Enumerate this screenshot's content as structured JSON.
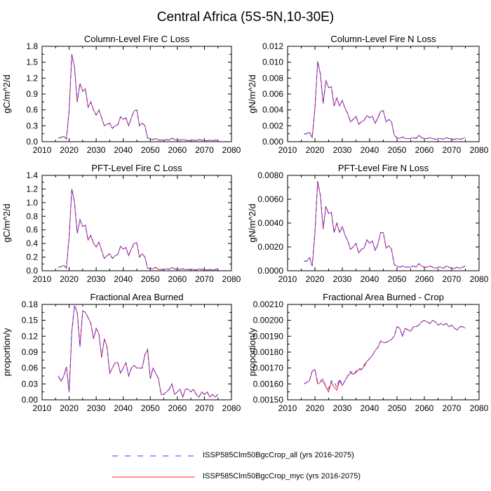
{
  "page_title": "Central Africa (5S-5N,10-30E)",
  "colors": {
    "series_all": "#3a3aff",
    "series_myc": "#ff2020"
  },
  "legend": [
    {
      "label": "ISSP585Clm50BgcCrop_all (yrs 2016-2075)",
      "style": "dashed",
      "color": "#3a3aff"
    },
    {
      "label": "ISSP585Clm50BgcCrop_myc (yrs 2016-2075)",
      "style": "solid",
      "color": "#ff2020"
    }
  ],
  "chart_data": [
    {
      "type": "line",
      "title": "Column-Level Fire C Loss",
      "ylabel": "gC/m^2/d",
      "xlim": [
        2010,
        2080
      ],
      "ylim": [
        0,
        1.8
      ],
      "x_ticks": [
        "2010",
        "2020",
        "2030",
        "2040",
        "2050",
        "2060",
        "2070",
        "2080"
      ],
      "y_ticks": [
        "0.0",
        "0.3",
        "0.6",
        "0.9",
        "1.2",
        "1.5",
        "1.8"
      ],
      "x_start": 2016,
      "series": [
        {
          "name": "ISSP585Clm50BgcCrop_all (yrs 2016-2075)",
          "values": [
            0.07,
            0.08,
            0.1,
            0.05,
            0.6,
            1.65,
            1.4,
            0.75,
            1.1,
            0.95,
            1.0,
            0.65,
            0.75,
            0.6,
            0.5,
            0.6,
            0.45,
            0.3,
            0.33,
            0.35,
            0.25,
            0.3,
            0.32,
            0.47,
            0.42,
            0.45,
            0.3,
            0.45,
            0.58,
            0.6,
            0.3,
            0.35,
            0.3,
            0.07,
            0.05,
            0.04,
            0.06,
            0.03,
            0.03,
            0.03,
            0.04,
            0.03,
            0.07,
            0.04,
            0.03,
            0.03,
            0.04,
            0.03,
            0.02,
            0.03,
            0.03,
            0.02,
            0.04,
            0.03,
            0.02,
            0.02,
            0.03,
            0.02,
            0.03,
            0.03
          ]
        },
        {
          "name": "ISSP585Clm50BgcCrop_myc (yrs 2016-2075)",
          "values": [
            0.07,
            0.08,
            0.1,
            0.05,
            0.6,
            1.65,
            1.4,
            0.75,
            1.1,
            0.95,
            1.0,
            0.65,
            0.75,
            0.6,
            0.5,
            0.6,
            0.45,
            0.3,
            0.33,
            0.35,
            0.25,
            0.3,
            0.32,
            0.47,
            0.42,
            0.45,
            0.3,
            0.45,
            0.58,
            0.6,
            0.3,
            0.35,
            0.3,
            0.07,
            0.05,
            0.04,
            0.06,
            0.03,
            0.03,
            0.03,
            0.04,
            0.03,
            0.07,
            0.04,
            0.03,
            0.03,
            0.04,
            0.03,
            0.02,
            0.03,
            0.03,
            0.02,
            0.04,
            0.03,
            0.02,
            0.02,
            0.03,
            0.02,
            0.03,
            0.03
          ]
        }
      ]
    },
    {
      "type": "line",
      "title": "Column-Level Fire N Loss",
      "ylabel": "gN/m^2/d",
      "xlim": [
        2010,
        2080
      ],
      "ylim": [
        0,
        0.012
      ],
      "x_ticks": [
        "2010",
        "2020",
        "2030",
        "2040",
        "2050",
        "2060",
        "2070",
        "2080"
      ],
      "y_ticks": [
        "0.000",
        "0.002",
        "0.004",
        "0.006",
        "0.008",
        "0.010",
        "0.012"
      ],
      "x_start": 2016,
      "series": [
        {
          "name": "ISSP585Clm50BgcCrop_all (yrs 2016-2075)",
          "values": [
            0.001,
            0.001,
            0.0012,
            0.0005,
            0.0042,
            0.0101,
            0.0085,
            0.0048,
            0.0077,
            0.0068,
            0.0069,
            0.0045,
            0.0055,
            0.0045,
            0.0052,
            0.0042,
            0.0035,
            0.0025,
            0.0028,
            0.0032,
            0.0022,
            0.0025,
            0.0027,
            0.0033,
            0.003,
            0.0032,
            0.0023,
            0.003,
            0.0038,
            0.0039,
            0.0025,
            0.0028,
            0.0025,
            0.0008,
            0.0005,
            0.0004,
            0.0006,
            0.0004,
            0.0004,
            0.0004,
            0.0005,
            0.0004,
            0.0008,
            0.0005,
            0.0004,
            0.0004,
            0.0005,
            0.0004,
            0.0003,
            0.0004,
            0.0004,
            0.0003,
            0.0005,
            0.0004,
            0.0003,
            0.0003,
            0.0004,
            0.0003,
            0.0004,
            0.0005
          ]
        },
        {
          "name": "ISSP585Clm50BgcCrop_myc (yrs 2016-2075)",
          "values": [
            0.001,
            0.001,
            0.0012,
            0.0005,
            0.0042,
            0.0101,
            0.0085,
            0.0048,
            0.0077,
            0.0068,
            0.0069,
            0.0045,
            0.0055,
            0.0045,
            0.0052,
            0.0042,
            0.0035,
            0.0025,
            0.0028,
            0.0032,
            0.0022,
            0.0025,
            0.0027,
            0.0033,
            0.003,
            0.0032,
            0.0023,
            0.003,
            0.0038,
            0.0039,
            0.0025,
            0.0028,
            0.0025,
            0.0008,
            0.0005,
            0.0004,
            0.0006,
            0.0004,
            0.0004,
            0.0004,
            0.0005,
            0.0004,
            0.0008,
            0.0005,
            0.0004,
            0.0004,
            0.0005,
            0.0004,
            0.0003,
            0.0004,
            0.0004,
            0.0003,
            0.0005,
            0.0004,
            0.0003,
            0.0003,
            0.0004,
            0.0003,
            0.0004,
            0.0005
          ]
        }
      ]
    },
    {
      "type": "line",
      "title": "PFT-Level Fire C Loss",
      "ylabel": "gC/m^2/d",
      "xlim": [
        2010,
        2080
      ],
      "ylim": [
        0,
        1.4
      ],
      "x_ticks": [
        "2010",
        "2020",
        "2030",
        "2040",
        "2050",
        "2060",
        "2070",
        "2080"
      ],
      "y_ticks": [
        "0.0",
        "0.2",
        "0.4",
        "0.6",
        "0.8",
        "1.0",
        "1.2",
        "1.4"
      ],
      "x_start": 2016,
      "series": [
        {
          "name": "ISSP585Clm50BgcCrop_all (yrs 2016-2075)",
          "values": [
            0.05,
            0.06,
            0.08,
            0.04,
            0.5,
            1.2,
            1.0,
            0.55,
            0.75,
            0.65,
            0.67,
            0.45,
            0.52,
            0.4,
            0.35,
            0.42,
            0.3,
            0.18,
            0.22,
            0.25,
            0.18,
            0.22,
            0.24,
            0.36,
            0.32,
            0.34,
            0.22,
            0.32,
            0.4,
            0.41,
            0.2,
            0.25,
            0.2,
            0.04,
            0.03,
            0.03,
            0.05,
            0.02,
            0.02,
            0.02,
            0.03,
            0.02,
            0.05,
            0.03,
            0.02,
            0.02,
            0.03,
            0.02,
            0.02,
            0.02,
            0.02,
            0.01,
            0.03,
            0.02,
            0.02,
            0.01,
            0.02,
            0.01,
            0.02,
            0.03
          ]
        },
        {
          "name": "ISSP585Clm50BgcCrop_myc (yrs 2016-2075)",
          "values": [
            0.05,
            0.06,
            0.08,
            0.04,
            0.5,
            1.2,
            1.0,
            0.55,
            0.75,
            0.65,
            0.67,
            0.45,
            0.52,
            0.4,
            0.35,
            0.42,
            0.3,
            0.18,
            0.22,
            0.25,
            0.18,
            0.22,
            0.24,
            0.36,
            0.32,
            0.34,
            0.22,
            0.32,
            0.4,
            0.41,
            0.2,
            0.25,
            0.2,
            0.04,
            0.03,
            0.03,
            0.05,
            0.02,
            0.02,
            0.02,
            0.03,
            0.02,
            0.05,
            0.03,
            0.02,
            0.02,
            0.03,
            0.02,
            0.02,
            0.02,
            0.02,
            0.01,
            0.03,
            0.02,
            0.02,
            0.01,
            0.02,
            0.01,
            0.02,
            0.03
          ]
        }
      ]
    },
    {
      "type": "line",
      "title": "PFT-Level Fire N Loss",
      "ylabel": "gN/m^2/d",
      "xlim": [
        2010,
        2080
      ],
      "ylim": [
        0,
        0.008
      ],
      "x_ticks": [
        "2010",
        "2020",
        "2030",
        "2040",
        "2050",
        "2060",
        "2070",
        "2080"
      ],
      "y_ticks": [
        "0.0000",
        "0.0020",
        "0.0040",
        "0.0060",
        "0.0080"
      ],
      "x_start": 2016,
      "series": [
        {
          "name": "ISSP585Clm50BgcCrop_all (yrs 2016-2075)",
          "values": [
            0.0008,
            0.0008,
            0.0011,
            0.0004,
            0.0032,
            0.0075,
            0.0063,
            0.0035,
            0.0054,
            0.0048,
            0.0049,
            0.0032,
            0.004,
            0.0032,
            0.0037,
            0.003,
            0.0025,
            0.0018,
            0.002,
            0.0023,
            0.0015,
            0.0018,
            0.0019,
            0.0026,
            0.0023,
            0.0025,
            0.0017,
            0.0022,
            0.0032,
            0.0032,
            0.0019,
            0.0021,
            0.0018,
            0.0005,
            0.0004,
            0.0003,
            0.0004,
            0.0003,
            0.0003,
            0.0003,
            0.0004,
            0.0003,
            0.0006,
            0.0004,
            0.0003,
            0.0003,
            0.0004,
            0.0003,
            0.0002,
            0.0003,
            0.0003,
            0.0002,
            0.0004,
            0.0003,
            0.0002,
            0.0002,
            0.0003,
            0.0002,
            0.0003,
            0.0004
          ]
        },
        {
          "name": "ISSP585Clm50BgcCrop_myc (yrs 2016-2075)",
          "values": [
            0.0008,
            0.0008,
            0.0011,
            0.0004,
            0.0032,
            0.0075,
            0.0063,
            0.0035,
            0.0054,
            0.0048,
            0.0049,
            0.0032,
            0.004,
            0.0032,
            0.0037,
            0.003,
            0.0025,
            0.0018,
            0.002,
            0.0023,
            0.0015,
            0.0018,
            0.0019,
            0.0026,
            0.0023,
            0.0025,
            0.0017,
            0.0022,
            0.0032,
            0.0032,
            0.0019,
            0.0021,
            0.0018,
            0.0005,
            0.0004,
            0.0003,
            0.0004,
            0.0003,
            0.0003,
            0.0003,
            0.0004,
            0.0003,
            0.0006,
            0.0004,
            0.0003,
            0.0003,
            0.0004,
            0.0003,
            0.0002,
            0.0003,
            0.0003,
            0.0002,
            0.0004,
            0.0003,
            0.0002,
            0.0002,
            0.0003,
            0.0002,
            0.0003,
            0.0004
          ]
        }
      ]
    },
    {
      "type": "line",
      "title": "Fractional Area Burned",
      "ylabel": "proportion/y",
      "xlim": [
        2010,
        2080
      ],
      "ylim": [
        0,
        0.18
      ],
      "x_ticks": [
        "2010",
        "2020",
        "2030",
        "2040",
        "2050",
        "2060",
        "2070",
        "2080"
      ],
      "y_ticks": [
        "0.00",
        "0.03",
        "0.06",
        "0.09",
        "0.12",
        "0.15",
        "0.18"
      ],
      "x_start": 2016,
      "series": [
        {
          "name": "ISSP585Clm50BgcCrop_all (yrs 2016-2075)",
          "values": [
            0.045,
            0.035,
            0.045,
            0.062,
            0.015,
            0.13,
            0.178,
            0.165,
            0.1,
            0.168,
            0.165,
            0.155,
            0.145,
            0.115,
            0.135,
            0.125,
            0.08,
            0.115,
            0.1,
            0.05,
            0.06,
            0.07,
            0.07,
            0.05,
            0.06,
            0.07,
            0.045,
            0.06,
            0.065,
            0.06,
            0.06,
            0.06,
            0.085,
            0.095,
            0.04,
            0.06,
            0.05,
            0.04,
            0.01,
            0.01,
            0.015,
            0.02,
            0.03,
            0.01,
            0.015,
            0.02,
            0.005,
            0.02,
            0.02,
            0.015,
            0.02,
            0.01,
            0.005,
            0.015,
            0.01,
            0.015,
            0.005,
            0.01,
            0.005,
            0.01
          ]
        },
        {
          "name": "ISSP585Clm50BgcCrop_myc (yrs 2016-2075)",
          "values": [
            0.045,
            0.035,
            0.045,
            0.062,
            0.015,
            0.13,
            0.178,
            0.165,
            0.1,
            0.168,
            0.165,
            0.155,
            0.145,
            0.115,
            0.135,
            0.125,
            0.08,
            0.115,
            0.1,
            0.05,
            0.06,
            0.07,
            0.07,
            0.05,
            0.06,
            0.07,
            0.045,
            0.06,
            0.065,
            0.06,
            0.06,
            0.06,
            0.085,
            0.095,
            0.04,
            0.06,
            0.05,
            0.04,
            0.01,
            0.01,
            0.015,
            0.02,
            0.03,
            0.01,
            0.015,
            0.02,
            0.005,
            0.02,
            0.02,
            0.015,
            0.02,
            0.01,
            0.005,
            0.015,
            0.01,
            0.015,
            0.005,
            0.01,
            0.005,
            0.01
          ]
        }
      ]
    },
    {
      "type": "line",
      "title": "Fractional Area Burned - Crop",
      "ylabel": "proportion/y",
      "xlim": [
        2010,
        2080
      ],
      "ylim": [
        0.0015,
        0.0021
      ],
      "x_ticks": [
        "2010",
        "2020",
        "2030",
        "2040",
        "2050",
        "2060",
        "2070",
        "2080"
      ],
      "y_ticks": [
        "0.00150",
        "0.00160",
        "0.00170",
        "0.00180",
        "0.00190",
        "0.00200",
        "0.00210"
      ],
      "x_start": 2016,
      "series": [
        {
          "name": "ISSP585Clm50BgcCrop_all (yrs 2016-2075)",
          "values": [
            0.0016,
            0.00161,
            0.00162,
            0.00168,
            0.00169,
            0.00161,
            0.00162,
            0.00163,
            0.00158,
            0.00157,
            0.00162,
            0.00161,
            0.00158,
            0.00163,
            0.00159,
            0.00162,
            0.00165,
            0.00168,
            0.00166,
            0.00168,
            0.0017,
            0.00169,
            0.00172,
            0.00174,
            0.00176,
            0.00178,
            0.00181,
            0.00183,
            0.00187,
            0.00186,
            0.00186,
            0.00187,
            0.00188,
            0.0019,
            0.00196,
            0.00195,
            0.0019,
            0.00195,
            0.00194,
            0.00193,
            0.00196,
            0.00196,
            0.00197,
            0.00199,
            0.002,
            0.00199,
            0.00198,
            0.002,
            0.00199,
            0.00197,
            0.00198,
            0.00197,
            0.00198,
            0.00196,
            0.00197,
            0.00195,
            0.00194,
            0.00196,
            0.00196,
            0.00195
          ]
        },
        {
          "name": "ISSP585Clm50BgcCrop_myc (yrs 2016-2075)",
          "values": [
            0.0016,
            0.00161,
            0.00162,
            0.00168,
            0.00169,
            0.0016,
            0.00161,
            0.00162,
            0.00158,
            0.00155,
            0.00161,
            0.00158,
            0.00156,
            0.00162,
            0.00159,
            0.00162,
            0.00165,
            0.00167,
            0.00166,
            0.00167,
            0.00169,
            0.00169,
            0.00171,
            0.00174,
            0.00176,
            0.00178,
            0.00181,
            0.00183,
            0.00187,
            0.00186,
            0.00186,
            0.00187,
            0.00188,
            0.0019,
            0.00196,
            0.00195,
            0.0019,
            0.00195,
            0.00194,
            0.00193,
            0.00196,
            0.00196,
            0.00197,
            0.00199,
            0.002,
            0.00199,
            0.00198,
            0.002,
            0.00199,
            0.00197,
            0.00198,
            0.00197,
            0.00198,
            0.00196,
            0.00197,
            0.00195,
            0.00194,
            0.00196,
            0.00196,
            0.00195
          ]
        }
      ]
    }
  ]
}
